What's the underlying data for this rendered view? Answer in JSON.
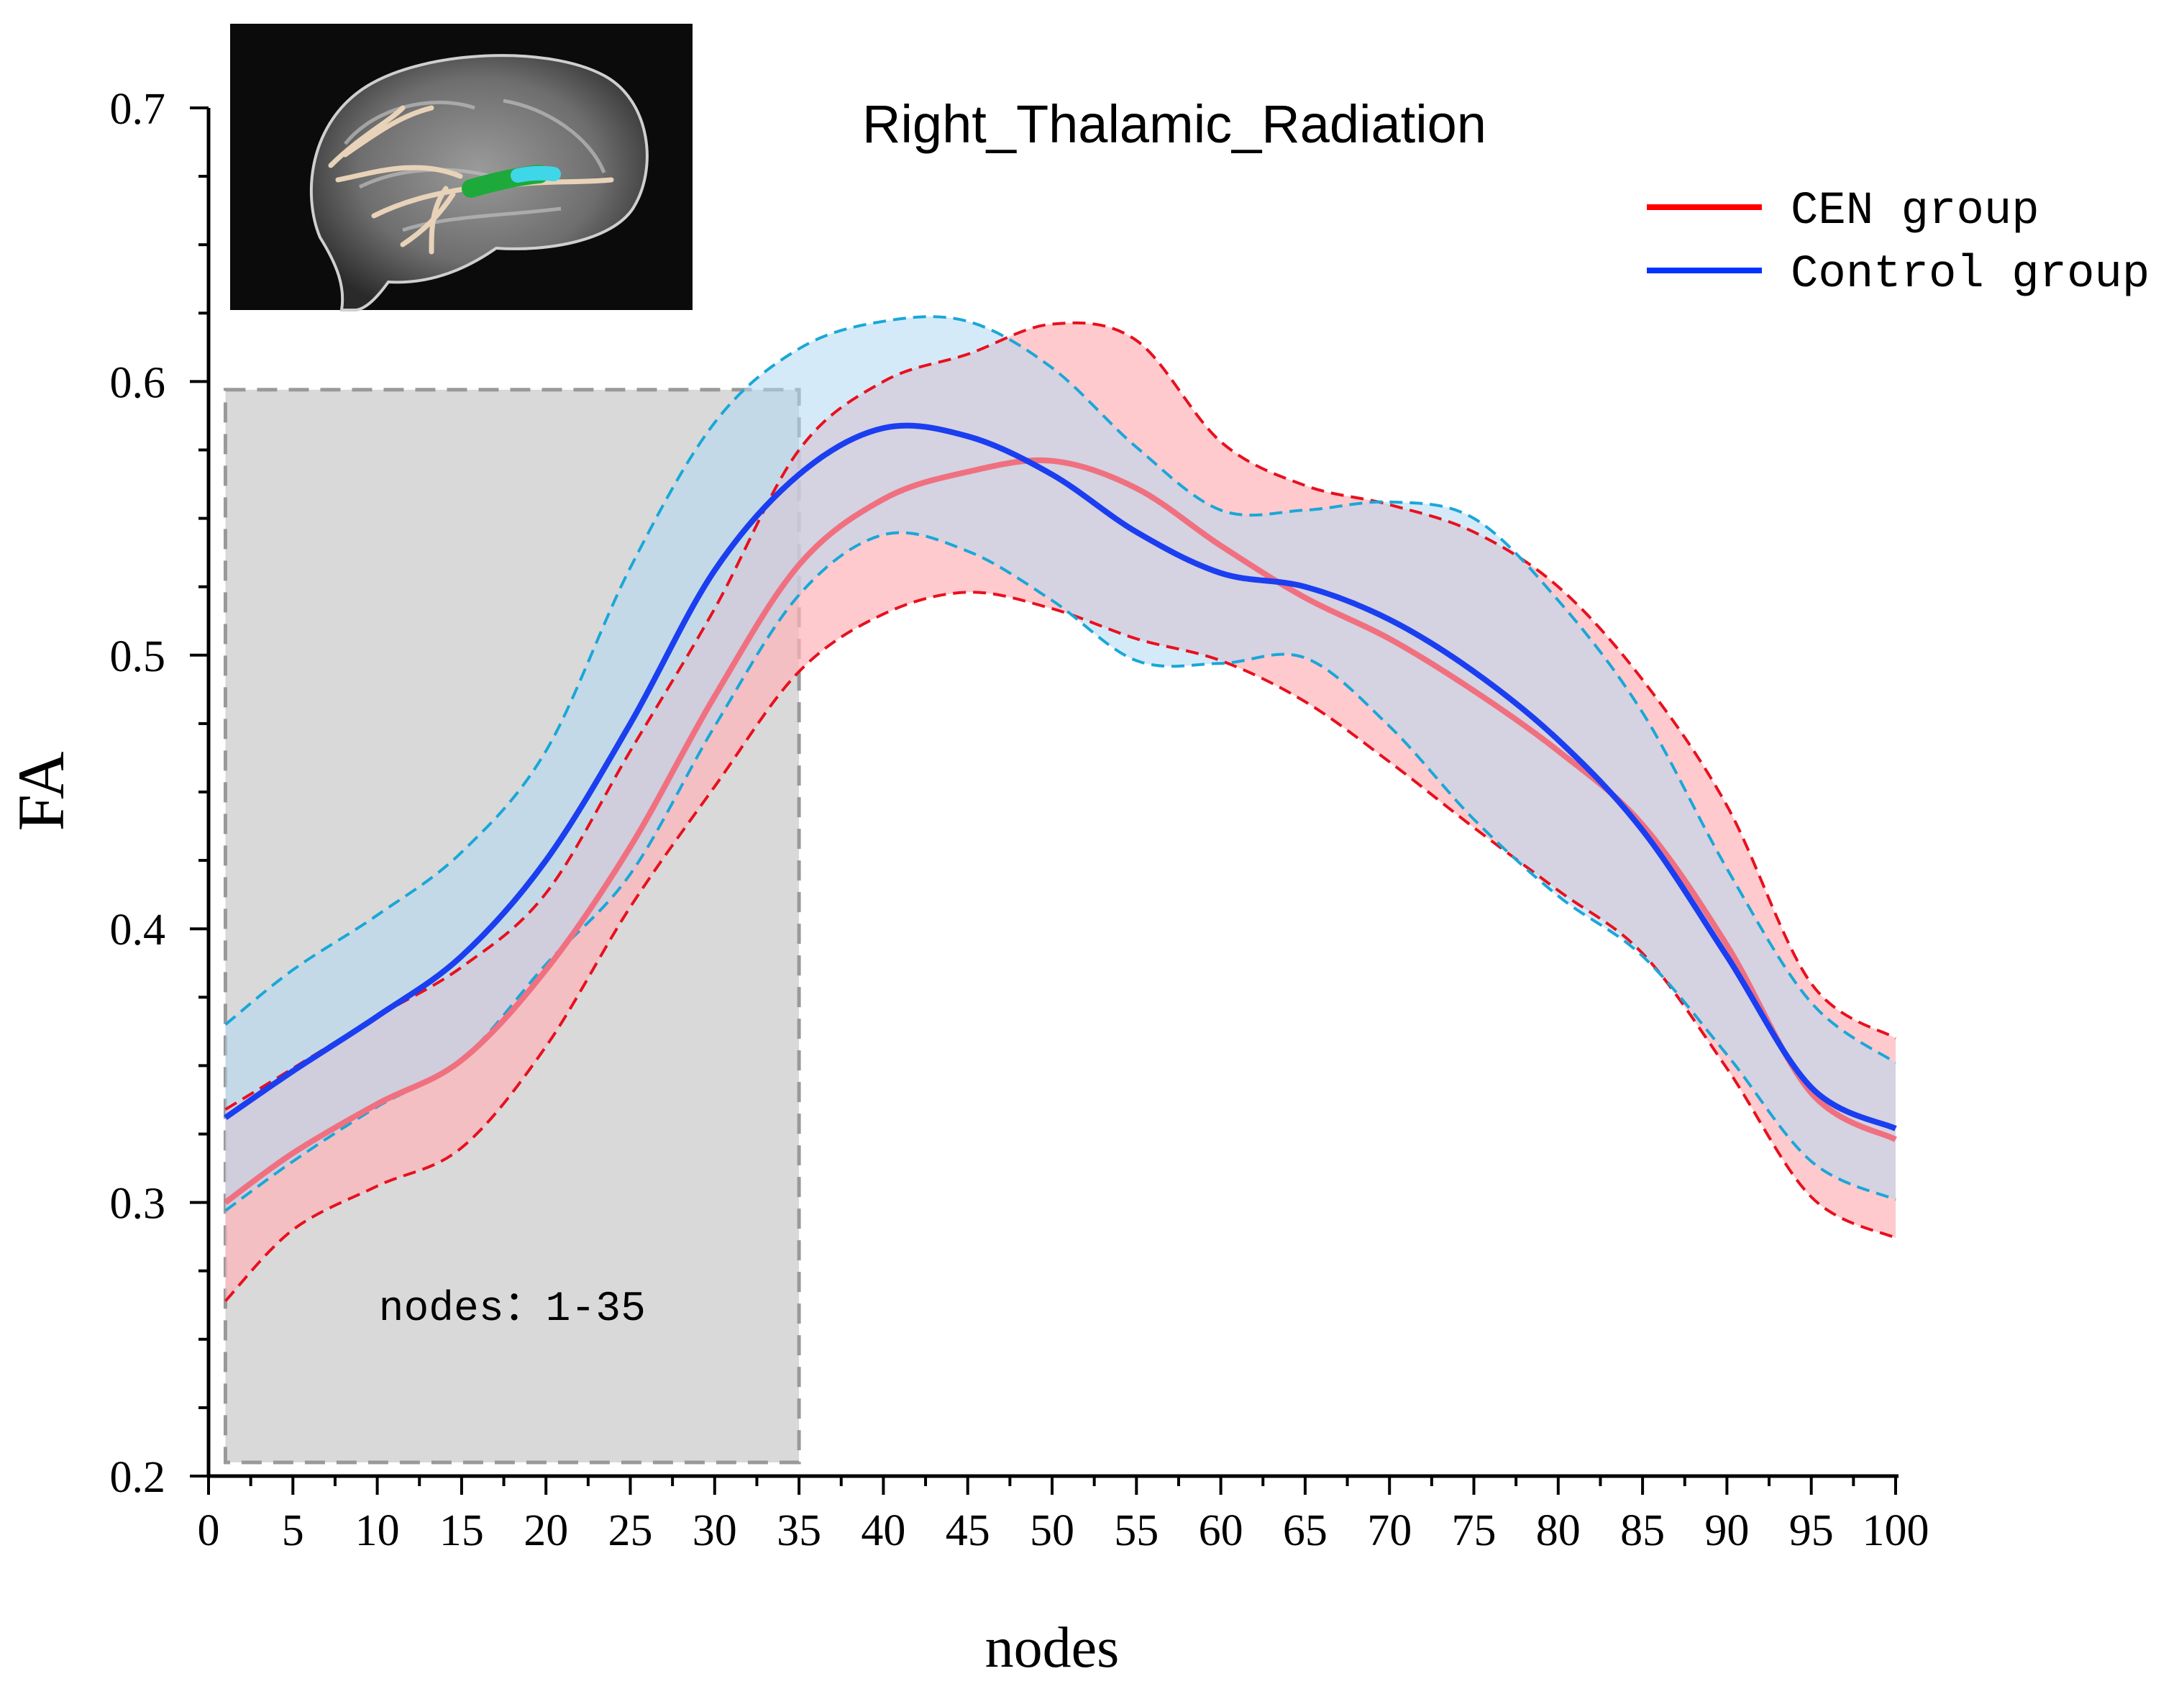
{
  "chart_data": {
    "type": "line",
    "title": "Right_Thalamic_Radiation",
    "xlabel": "nodes",
    "ylabel": "FA",
    "xlim": [
      0,
      100
    ],
    "ylim": [
      0.2,
      0.7
    ],
    "x_ticks": [
      0,
      5,
      10,
      15,
      20,
      25,
      30,
      35,
      40,
      45,
      50,
      55,
      60,
      65,
      70,
      75,
      80,
      85,
      90,
      95,
      100
    ],
    "y_ticks": [
      "0.2",
      "0.3",
      "0.4",
      "0.5",
      "0.6",
      "0.7"
    ],
    "grid": false,
    "legend_position": "top-right",
    "highlight_region": {
      "x_range": [
        1,
        35
      ],
      "y_range": [
        0.205,
        0.597
      ],
      "label": "nodes：1-35"
    },
    "inset": {
      "description": "sagittal brain MRI with highlighted tract",
      "position": "top-left"
    },
    "x": [
      1,
      5,
      10,
      15,
      20,
      25,
      30,
      35,
      40,
      45,
      50,
      55,
      60,
      65,
      70,
      75,
      80,
      85,
      90,
      95,
      100
    ],
    "series": [
      {
        "name": "CEN group",
        "color": "#ff0000",
        "mean_color": "#f07080",
        "band_color": "#ffb3b8",
        "mean": [
          0.3,
          0.318,
          0.336,
          0.352,
          0.385,
          0.43,
          0.485,
          0.533,
          0.557,
          0.567,
          0.571,
          0.561,
          0.54,
          0.521,
          0.506,
          0.487,
          0.465,
          0.438,
          0.394,
          0.34,
          0.323
        ],
        "upper": [
          0.334,
          0.349,
          0.368,
          0.386,
          0.413,
          0.465,
          0.517,
          0.575,
          0.6,
          0.61,
          0.621,
          0.615,
          0.578,
          0.562,
          0.555,
          0.545,
          0.525,
          0.491,
          0.445,
          0.38,
          0.36
        ],
        "lower": [
          0.264,
          0.29,
          0.306,
          0.32,
          0.357,
          0.408,
          0.452,
          0.494,
          0.515,
          0.523,
          0.517,
          0.506,
          0.498,
          0.483,
          0.461,
          0.437,
          0.414,
          0.391,
          0.349,
          0.302,
          0.287
        ]
      },
      {
        "name": "Control group",
        "color": "#0033ff",
        "mean_color": "#1a3ef0",
        "band_color": "#b3d9f2",
        "mean": [
          0.331,
          0.348,
          0.368,
          0.39,
          0.425,
          0.475,
          0.531,
          0.566,
          0.583,
          0.58,
          0.566,
          0.545,
          0.53,
          0.525,
          0.513,
          0.494,
          0.469,
          0.436,
          0.39,
          0.342,
          0.327
        ],
        "upper": [
          0.365,
          0.385,
          0.405,
          0.428,
          0.465,
          0.532,
          0.585,
          0.612,
          0.622,
          0.622,
          0.605,
          0.576,
          0.553,
          0.553,
          0.556,
          0.55,
          0.52,
          0.479,
          0.422,
          0.373,
          0.351
        ],
        "lower": [
          0.297,
          0.315,
          0.335,
          0.352,
          0.387,
          0.42,
          0.474,
          0.522,
          0.544,
          0.538,
          0.52,
          0.498,
          0.497,
          0.499,
          0.474,
          0.44,
          0.412,
          0.39,
          0.354,
          0.315,
          0.301
        ]
      }
    ]
  }
}
